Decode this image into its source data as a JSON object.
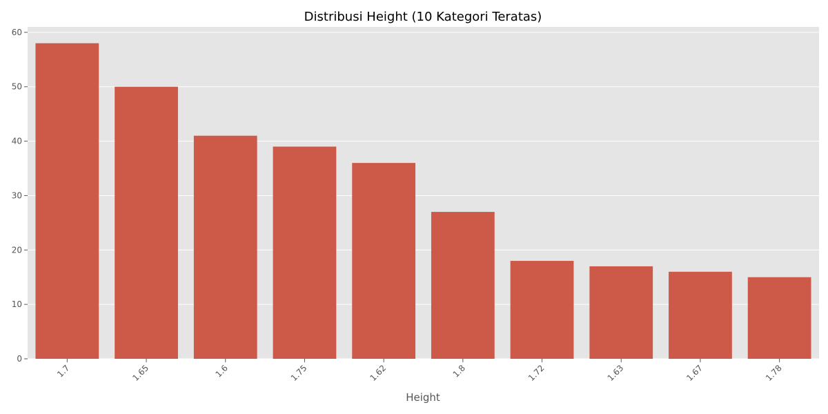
{
  "chart_data": {
    "type": "bar",
    "title": "Distribusi Height (10 Kategori Teratas)",
    "xlabel": "Height",
    "ylabel": "",
    "categories": [
      "1.7",
      "1.65",
      "1.6",
      "1.75",
      "1.62",
      "1.8",
      "1.72",
      "1.63",
      "1.67",
      "1.78"
    ],
    "values": [
      58,
      50,
      41,
      39,
      36,
      27,
      18,
      17,
      16,
      15
    ],
    "ylim": [
      0,
      61
    ],
    "yticks": [
      0,
      10,
      20,
      30,
      40,
      50,
      60
    ],
    "grid": true,
    "colors": {
      "bar": "#cd5a48",
      "background": "#e5e5e5",
      "grid": "#ffffff"
    }
  }
}
